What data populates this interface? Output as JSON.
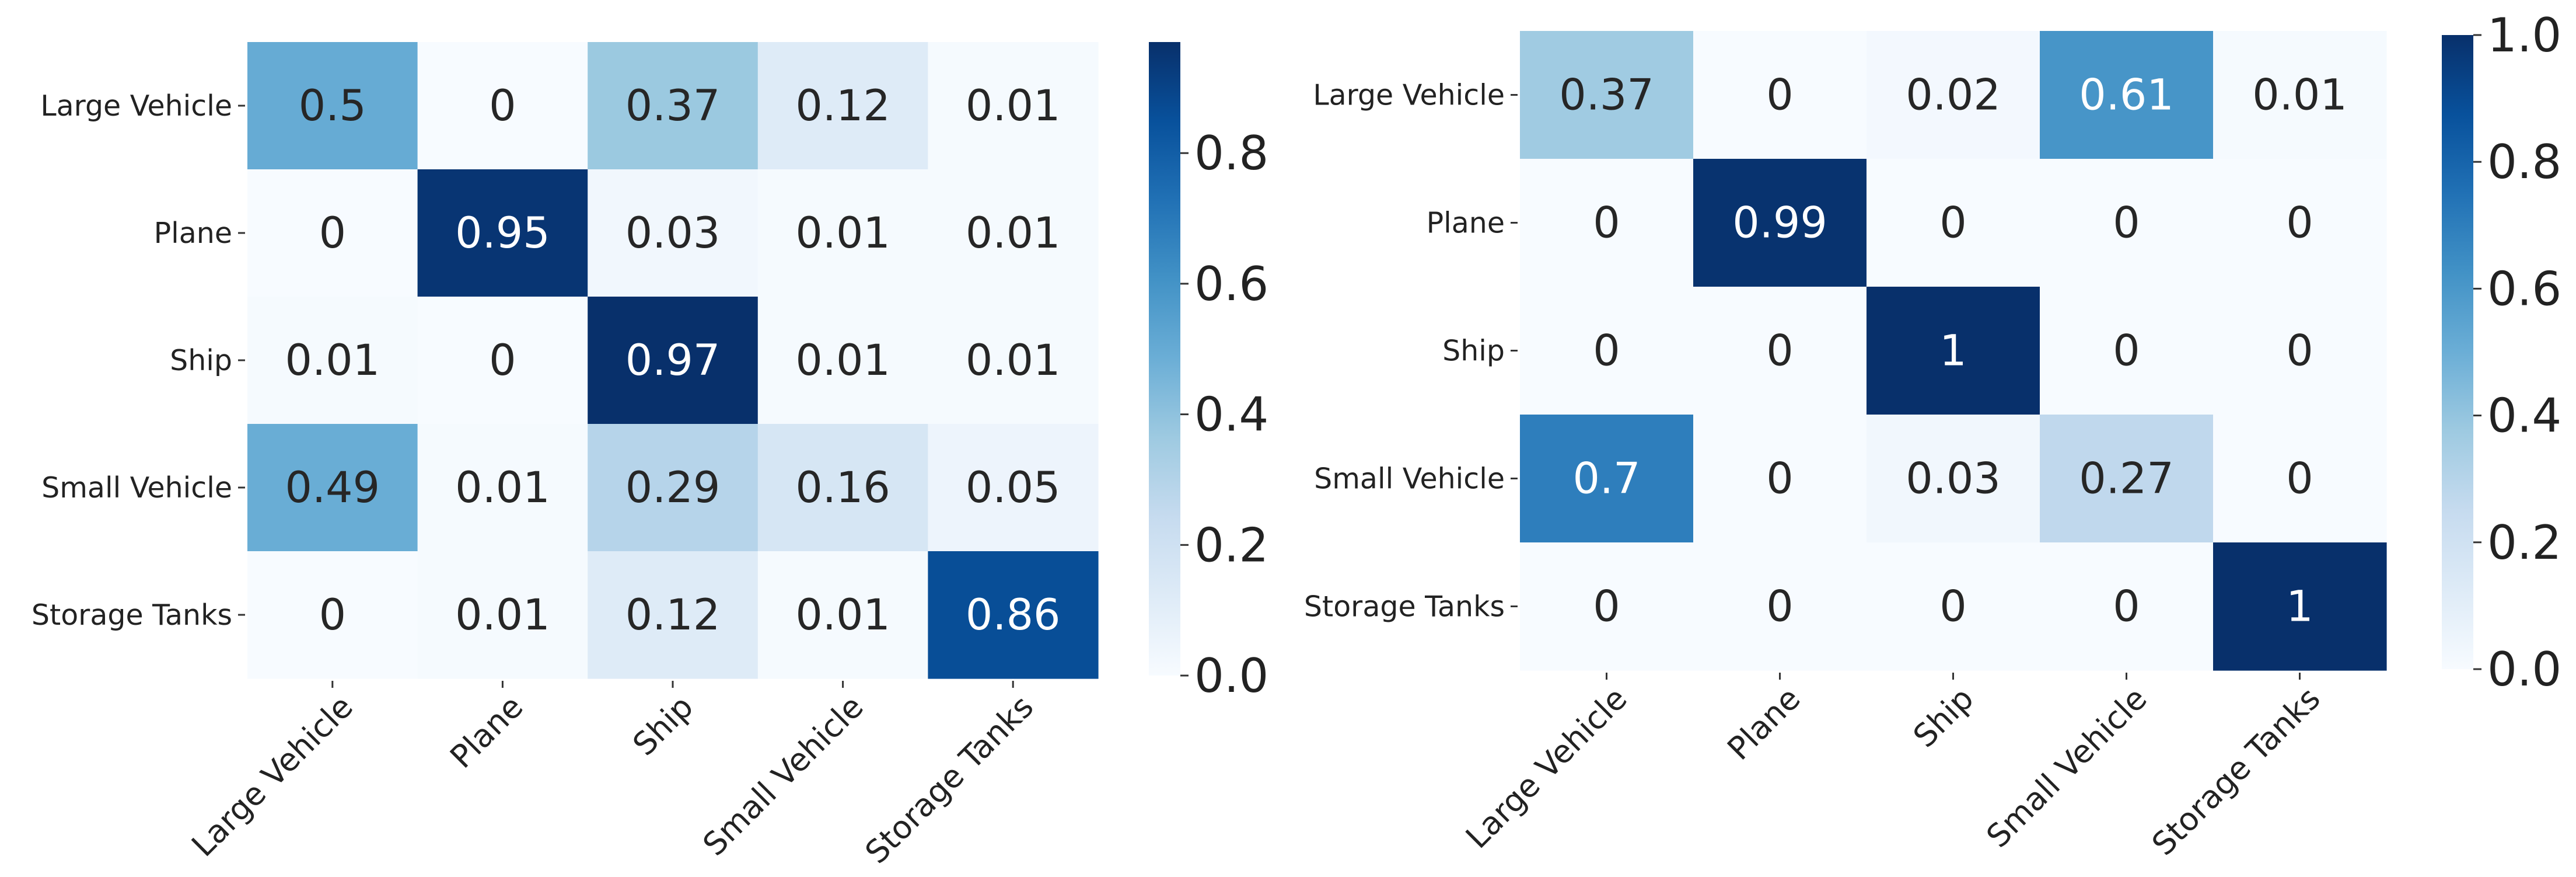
{
  "chart_data": [
    {
      "type": "heatmap",
      "title": "",
      "row_labels": [
        "Large Vehicle",
        "Plane",
        "Ship",
        "Small Vehicle",
        "Storage Tanks"
      ],
      "col_labels": [
        "Large Vehicle",
        "Plane",
        "Ship",
        "Small Vehicle",
        "Storage Tanks"
      ],
      "values": [
        [
          0.5,
          0,
          0.37,
          0.12,
          0.01
        ],
        [
          0,
          0.95,
          0.03,
          0.01,
          0.01
        ],
        [
          0.01,
          0,
          0.97,
          0.01,
          0.01
        ],
        [
          0.49,
          0.01,
          0.29,
          0.16,
          0.05
        ],
        [
          0,
          0.01,
          0.12,
          0.01,
          0.86
        ]
      ],
      "colormap": "Blues",
      "colorbar": {
        "min": 0,
        "max": 0.97,
        "ticks": [
          0.0,
          0.2,
          0.4,
          0.6,
          0.8
        ],
        "tick_labels": [
          "0.0",
          "0.2",
          "0.4",
          "0.6",
          "0.8"
        ]
      }
    },
    {
      "type": "heatmap",
      "title": "",
      "row_labels": [
        "Large Vehicle",
        "Plane",
        "Ship",
        "Small Vehicle",
        "Storage Tanks"
      ],
      "col_labels": [
        "Large Vehicle",
        "Plane",
        "Ship",
        "Small Vehicle",
        "Storage Tanks"
      ],
      "values": [
        [
          0.37,
          0,
          0.02,
          0.61,
          0.01
        ],
        [
          0,
          0.99,
          0,
          0,
          0
        ],
        [
          0,
          0,
          1,
          0,
          0
        ],
        [
          0.7,
          0,
          0.03,
          0.27,
          0
        ],
        [
          0,
          0,
          0,
          0,
          1
        ]
      ],
      "colormap": "Blues",
      "colorbar": {
        "min": 0,
        "max": 1.0,
        "ticks": [
          0.0,
          0.2,
          0.4,
          0.6,
          0.8,
          1.0
        ],
        "tick_labels": [
          "0.0",
          "0.2",
          "0.4",
          "0.6",
          "0.8",
          "1.0"
        ]
      }
    }
  ]
}
